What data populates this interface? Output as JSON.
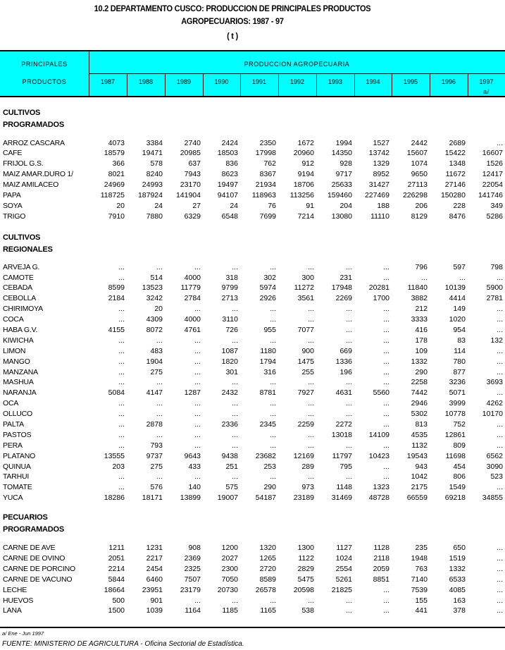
{
  "title": {
    "line1": "10.2  DEPARTAMENTO CUSCO: PRODUCCION DE PRINCIPALES  PRODUCTOS",
    "line2": "AGROPECUARIOS: 1987 - 97",
    "unit": "( t )"
  },
  "header": {
    "col1_line1": "PRINCIPALES",
    "col1_line2": "PRODUCTOS",
    "group_label": "PRODUCCION AGROPECUARIA",
    "years": [
      "1987",
      "1988",
      "1989",
      "1990",
      "1991",
      "1992",
      "1993",
      "1994",
      "1995",
      "1996",
      "1997"
    ],
    "last_year_note": "a/",
    "bg_color": "#00ffff"
  },
  "sections": [
    {
      "title": [
        "CULTIVOS",
        "PROGRAMADOS"
      ],
      "rows": [
        {
          "label": "ARROZ CASCARA",
          "values": [
            "4073",
            "3384",
            "2740",
            "2424",
            "2350",
            "1672",
            "1994",
            "1527",
            "2442",
            "2689",
            "..."
          ]
        },
        {
          "label": "CAFE",
          "values": [
            "18579",
            "19471",
            "20985",
            "18503",
            "17998",
            "20960",
            "14350",
            "13742",
            "15607",
            "15422",
            "16607"
          ]
        },
        {
          "label": "FRIJOL G.S.",
          "values": [
            "366",
            "578",
            "637",
            "836",
            "762",
            "912",
            "928",
            "1329",
            "1074",
            "1348",
            "1526"
          ]
        },
        {
          "label": "MAIZ AMAR.DURO 1/",
          "values": [
            "8021",
            "8240",
            "7943",
            "8623",
            "8367",
            "9194",
            "9717",
            "8952",
            "9650",
            "11672",
            "12417"
          ]
        },
        {
          "label": "MAIZ AMILACEO",
          "values": [
            "24969",
            "24993",
            "23170",
            "19497",
            "21934",
            "18706",
            "25633",
            "31427",
            "27113",
            "27146",
            "22054"
          ]
        },
        {
          "label": "PAPA",
          "values": [
            "118725",
            "187924",
            "141904",
            "94107",
            "118963",
            "113256",
            "159460",
            "227469",
            "226298",
            "150280",
            "141746"
          ]
        },
        {
          "label": "SOYA",
          "values": [
            "20",
            "24",
            "27",
            "24",
            "76",
            "91",
            "204",
            "188",
            "206",
            "228",
            "349"
          ]
        },
        {
          "label": "TRIGO",
          "values": [
            "7910",
            "7880",
            "6329",
            "6548",
            "7699",
            "7214",
            "13080",
            "11110",
            "8129",
            "8476",
            "5286"
          ]
        }
      ]
    },
    {
      "title": [
        "CULTIVOS",
        "REGIONALES"
      ],
      "rows": [
        {
          "label": "ARVEJA G.",
          "values": [
            "...",
            "...",
            "...",
            "...",
            "...",
            "...",
            "...",
            "...",
            "796",
            "597",
            "798"
          ]
        },
        {
          "label": "CAMOTE",
          "values": [
            "...",
            "514",
            "4000",
            "318",
            "302",
            "300",
            "231",
            "...",
            "...",
            "...",
            "..."
          ]
        },
        {
          "label": "CEBADA",
          "values": [
            "8599",
            "13523",
            "11779",
            "9799",
            "5974",
            "11272",
            "17948",
            "20281",
            "11840",
            "10139",
            "5900"
          ]
        },
        {
          "label": "CEBOLLA",
          "values": [
            "2184",
            "3242",
            "2784",
            "2713",
            "2926",
            "3561",
            "2269",
            "1700",
            "3882",
            "4414",
            "2781"
          ]
        },
        {
          "label": "CHIRIMOYA",
          "values": [
            "...",
            "20",
            "...",
            "...",
            "...",
            "...",
            "...",
            "...",
            "212",
            "149",
            "..."
          ]
        },
        {
          "label": "COCA",
          "values": [
            "...",
            "4309",
            "4000",
            "3110",
            "...",
            "...",
            "...",
            "...",
            "3333",
            "1020",
            "..."
          ]
        },
        {
          "label": "HABA G.V.",
          "values": [
            "4155",
            "8072",
            "4761",
            "726",
            "955",
            "7077",
            "...",
            "...",
            "416",
            "954",
            "..."
          ]
        },
        {
          "label": "KIWICHA",
          "values": [
            "...",
            "...",
            "...",
            "...",
            "...",
            "...",
            "...",
            "...",
            "178",
            "83",
            "132"
          ]
        },
        {
          "label": "LIMON",
          "values": [
            "...",
            "483",
            "...",
            "1087",
            "1180",
            "900",
            "669",
            "...",
            "109",
            "114",
            "..."
          ]
        },
        {
          "label": "MANGO",
          "values": [
            "...",
            "1904",
            "...",
            "1820",
            "1794",
            "1475",
            "1336",
            "...",
            "1332",
            "780",
            "..."
          ]
        },
        {
          "label": "MANZANA",
          "values": [
            "...",
            "275",
            "...",
            "301",
            "316",
            "255",
            "196",
            "...",
            "290",
            "877",
            "..."
          ]
        },
        {
          "label": "MASHUA",
          "values": [
            "...",
            "...",
            "...",
            "...",
            "...",
            "...",
            "...",
            "...",
            "2258",
            "3236",
            "3693"
          ]
        },
        {
          "label": "NARANJA",
          "values": [
            "5084",
            "4147",
            "1287",
            "2432",
            "8781",
            "7927",
            "4631",
            "5560",
            "7442",
            "5071",
            "..."
          ]
        },
        {
          "label": "OCA",
          "values": [
            "...",
            "...",
            "...",
            "...",
            "...",
            "...",
            "...",
            "...",
            "2946",
            "3999",
            "4262"
          ]
        },
        {
          "label": "OLLUCO",
          "values": [
            "...",
            "...",
            "...",
            "...",
            "...",
            "...",
            "...",
            "...",
            "5302",
            "10778",
            "10170"
          ]
        },
        {
          "label": "PALTA",
          "values": [
            "...",
            "2878",
            "...",
            "2336",
            "2345",
            "2259",
            "2272",
            "...",
            "813",
            "752",
            "..."
          ]
        },
        {
          "label": "PASTOS",
          "values": [
            "...",
            "...",
            "...",
            "...",
            "...",
            "...",
            "13018",
            "14109",
            "4535",
            "12861",
            "..."
          ]
        },
        {
          "label": "PERA",
          "values": [
            "...",
            "793",
            "...",
            "...",
            "...",
            "...",
            "...",
            "...",
            "1132",
            "809",
            "..."
          ]
        },
        {
          "label": "PLATANO",
          "values": [
            "13555",
            "9737",
            "9643",
            "9438",
            "23682",
            "12169",
            "11797",
            "10423",
            "19543",
            "11698",
            "6562"
          ]
        },
        {
          "label": "QUINUA",
          "values": [
            "203",
            "275",
            "433",
            "251",
            "253",
            "289",
            "795",
            "...",
            "943",
            "454",
            "3090"
          ]
        },
        {
          "label": "TARHUI",
          "values": [
            "...",
            "...",
            "...",
            "...",
            "...",
            "...",
            "...",
            "...",
            "1042",
            "806",
            "523"
          ]
        },
        {
          "label": "TOMATE",
          "values": [
            "...",
            "576",
            "140",
            "575",
            "290",
            "973",
            "1148",
            "1323",
            "2175",
            "1549",
            "..."
          ]
        },
        {
          "label": "YUCA",
          "values": [
            "18286",
            "18171",
            "13899",
            "19007",
            "54187",
            "23189",
            "31469",
            "48728",
            "66559",
            "69218",
            "34855"
          ]
        }
      ]
    },
    {
      "title": [
        "PECUARIOS",
        "PROGRAMADOS"
      ],
      "rows": [
        {
          "label": "CARNE DE AVE",
          "values": [
            "1211",
            "1231",
            "908",
            "1200",
            "1320",
            "1300",
            "1127",
            "1128",
            "235",
            "650",
            "..."
          ]
        },
        {
          "label": "CARNE DE OVINO",
          "values": [
            "2051",
            "2217",
            "2369",
            "2027",
            "1265",
            "1122",
            "1024",
            "2118",
            "1948",
            "1519",
            "..."
          ]
        },
        {
          "label": "CARNE DE PORCINO",
          "values": [
            "2214",
            "2454",
            "2325",
            "2300",
            "2720",
            "2829",
            "2554",
            "2059",
            "763",
            "1332",
            "..."
          ]
        },
        {
          "label": "CARNE DE VACUNO",
          "values": [
            "5844",
            "6460",
            "7507",
            "7050",
            "8589",
            "5475",
            "5261",
            "8851",
            "7140",
            "6533",
            "..."
          ]
        },
        {
          "label": "LECHE",
          "values": [
            "18664",
            "23951",
            "23179",
            "20730",
            "26578",
            "20598",
            "21825",
            "...",
            "7539",
            "4085",
            "..."
          ]
        },
        {
          "label": "HUEVOS",
          "values": [
            "500",
            "901",
            "...",
            "...",
            "...",
            "...",
            "...",
            "...",
            "155",
            "163",
            "..."
          ]
        },
        {
          "label": "LANA",
          "values": [
            "1500",
            "1039",
            "1164",
            "1185",
            "1165",
            "538",
            "...",
            "...",
            "441",
            "378",
            "..."
          ]
        }
      ]
    }
  ],
  "footer": {
    "note": "a/ Ene - Jun 1997",
    "source": "FUENTE: MINISTERIO DE AGRICULTURA - Oficina Sectorial de Estadística."
  }
}
